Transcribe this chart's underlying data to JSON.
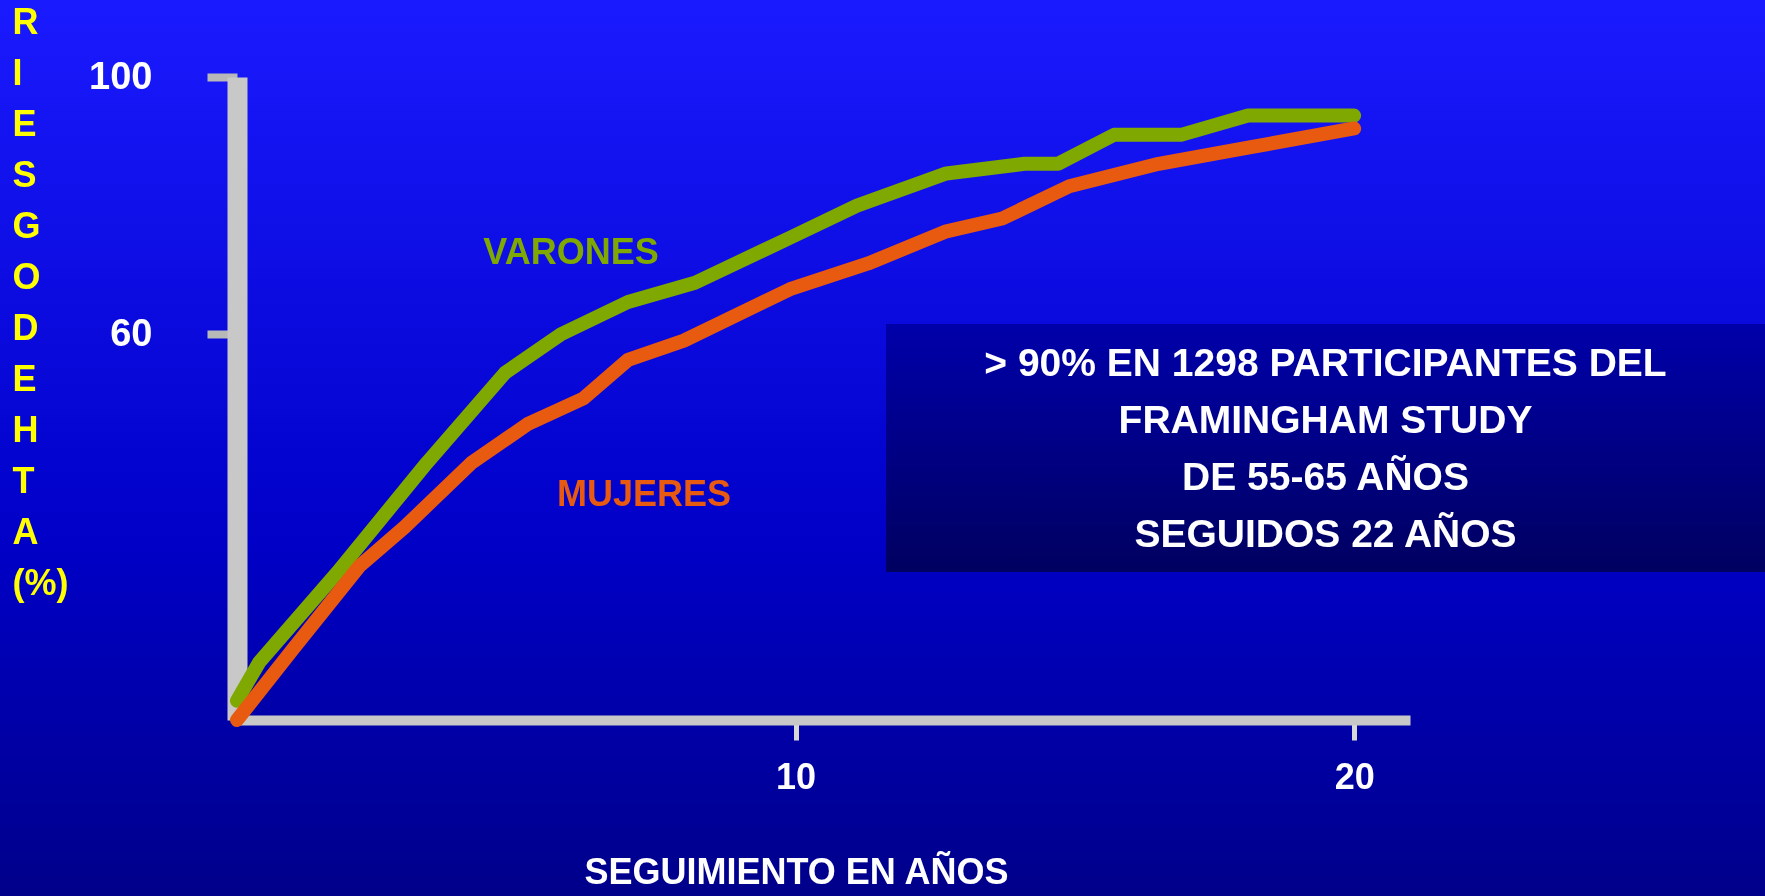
{
  "chart_data": {
    "type": "line",
    "xlabel": "SEGUIMIENTO EN AÑOS",
    "ylabel": "RIESGO DE HTA (%)",
    "annotations": [
      "> 90% EN 1298 PARTICIPANTES DEL\nFRAMINGHAM STUDY\nDE 55-65 AÑOS\nSEGUIDOS 22 AÑOS"
    ],
    "xlim": [
      0,
      21
    ],
    "ylim": [
      0,
      100
    ],
    "xticks": [
      10,
      20
    ],
    "yticks": [
      60,
      100
    ],
    "grid": false,
    "line_style": "solid",
    "series": [
      {
        "name": "VARONES",
        "color": "#7fa800",
        "x": [
          0,
          0.4,
          1.8,
          3.4,
          4.8,
          5.8,
          7.0,
          8.2,
          9.9,
          11.1,
          12.7,
          14.1,
          14.7,
          15.7,
          16.9,
          18.1,
          20
        ],
        "values": [
          3,
          9,
          23,
          40,
          54,
          60,
          65,
          68,
          75,
          80,
          85,
          86.5,
          86.5,
          91,
          91,
          94,
          94
        ]
      },
      {
        "name": "MUJERES",
        "color": "#e85a10",
        "x": [
          0,
          1,
          2.2,
          3,
          4.2,
          5.2,
          6.2,
          7,
          8,
          9.9,
          11.3,
          12.7,
          13.7,
          14.9,
          16.5,
          18.1,
          20
        ],
        "values": [
          0,
          11,
          24,
          30,
          40,
          46,
          50,
          56,
          59,
          67,
          71,
          76,
          78,
          83,
          86.5,
          89,
          92
        ]
      }
    ]
  }
}
